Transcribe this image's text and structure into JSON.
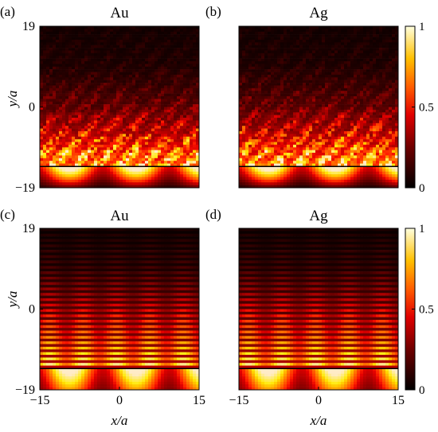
{
  "chart_data": [
    {
      "type": "heatmap",
      "panel": "(a)",
      "title": "Au",
      "ylabel": "y/a",
      "xlabel": "",
      "xlim": [
        -15,
        15
      ],
      "ylim": [
        -19,
        19
      ],
      "yticks": [
        "19",
        "0",
        "−19"
      ],
      "xticks": [],
      "interface_y": -14,
      "pattern": "speckle",
      "intensity_profile_y": [
        -19,
        -14,
        -10,
        -5,
        0,
        5,
        10,
        19
      ],
      "intensity_profile_v": [
        0.15,
        1.0,
        0.75,
        0.45,
        0.25,
        0.15,
        0.08,
        0.05
      ],
      "colorbar": null
    },
    {
      "type": "heatmap",
      "panel": "(b)",
      "title": "Ag",
      "ylabel": "",
      "xlabel": "",
      "xlim": [
        -15,
        15
      ],
      "ylim": [
        -19,
        19
      ],
      "yticks": [],
      "xticks": [],
      "interface_y": -14,
      "pattern": "speckle",
      "intensity_profile_y": [
        -19,
        -14,
        -10,
        -5,
        0,
        5,
        10,
        19
      ],
      "intensity_profile_v": [
        0.12,
        1.0,
        0.75,
        0.45,
        0.25,
        0.15,
        0.08,
        0.05
      ],
      "colorbar": {
        "range": [
          0,
          1
        ],
        "ticks": [
          "1",
          "0.5",
          "0"
        ],
        "colormap": "hot"
      }
    },
    {
      "type": "heatmap",
      "panel": "(c)",
      "title": "Au",
      "ylabel": "y/a",
      "xlabel": "x/a",
      "xlim": [
        -15,
        15
      ],
      "ylim": [
        -19,
        19
      ],
      "yticks": [
        "19",
        "0",
        "−19"
      ],
      "xticks": [
        "−15",
        "0",
        "15"
      ],
      "interface_y": -14,
      "pattern": "stripes",
      "intensity_profile_y": [
        -19,
        -14,
        -10,
        -5,
        0,
        5,
        10,
        19
      ],
      "intensity_profile_v": [
        0.55,
        0.95,
        0.75,
        0.55,
        0.4,
        0.25,
        0.12,
        0.05
      ],
      "colorbar": null
    },
    {
      "type": "heatmap",
      "panel": "(d)",
      "title": "Ag",
      "ylabel": "",
      "xlabel": "x/a",
      "xlim": [
        -15,
        15
      ],
      "ylim": [
        -19,
        19
      ],
      "yticks": [],
      "xticks": [
        "−15",
        "0",
        "15"
      ],
      "interface_y": -14,
      "pattern": "stripes",
      "intensity_profile_y": [
        -19,
        -14,
        -10,
        -5,
        0,
        5,
        10,
        19
      ],
      "intensity_profile_v": [
        0.55,
        0.95,
        0.75,
        0.55,
        0.4,
        0.25,
        0.12,
        0.05
      ],
      "colorbar": {
        "range": [
          0,
          1
        ],
        "ticks": [
          "1",
          "0.5",
          "0"
        ],
        "colormap": "hot"
      }
    }
  ]
}
